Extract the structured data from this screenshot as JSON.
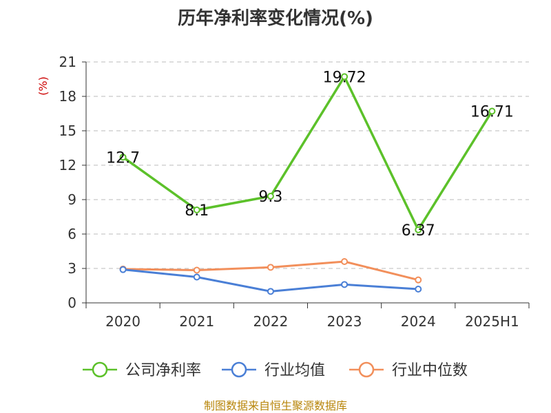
{
  "title": "历年净利率变化情况(%)",
  "footer": "制图数据来自恒生聚源数据库",
  "chart_data": {
    "type": "line",
    "title": "历年净利率变化情况(%)",
    "ylabel": "(%)",
    "xlabel": "",
    "categories": [
      "2020",
      "2021",
      "2022",
      "2023",
      "2024",
      "2025H1"
    ],
    "ylim": [
      0,
      21
    ],
    "yticks": [
      0,
      3,
      6,
      9,
      12,
      15,
      18,
      21
    ],
    "grid": true,
    "legend_position": "bottom",
    "series": [
      {
        "name": "公司净利率",
        "color": "#5cc12a",
        "values": [
          12.7,
          8.1,
          9.3,
          19.72,
          6.37,
          16.71
        ],
        "labels": [
          "12.7",
          "8.1",
          "9.3",
          "19.72",
          "6.37",
          "16.71"
        ],
        "show_labels": true
      },
      {
        "name": "行业均值",
        "color": "#4a7fd6",
        "values": [
          2.9,
          2.25,
          1.0,
          1.6,
          1.2,
          null
        ],
        "show_labels": false
      },
      {
        "name": "行业中位数",
        "color": "#f28f5b",
        "values": [
          2.95,
          2.85,
          3.1,
          3.6,
          2.0,
          null
        ],
        "show_labels": false
      }
    ]
  }
}
